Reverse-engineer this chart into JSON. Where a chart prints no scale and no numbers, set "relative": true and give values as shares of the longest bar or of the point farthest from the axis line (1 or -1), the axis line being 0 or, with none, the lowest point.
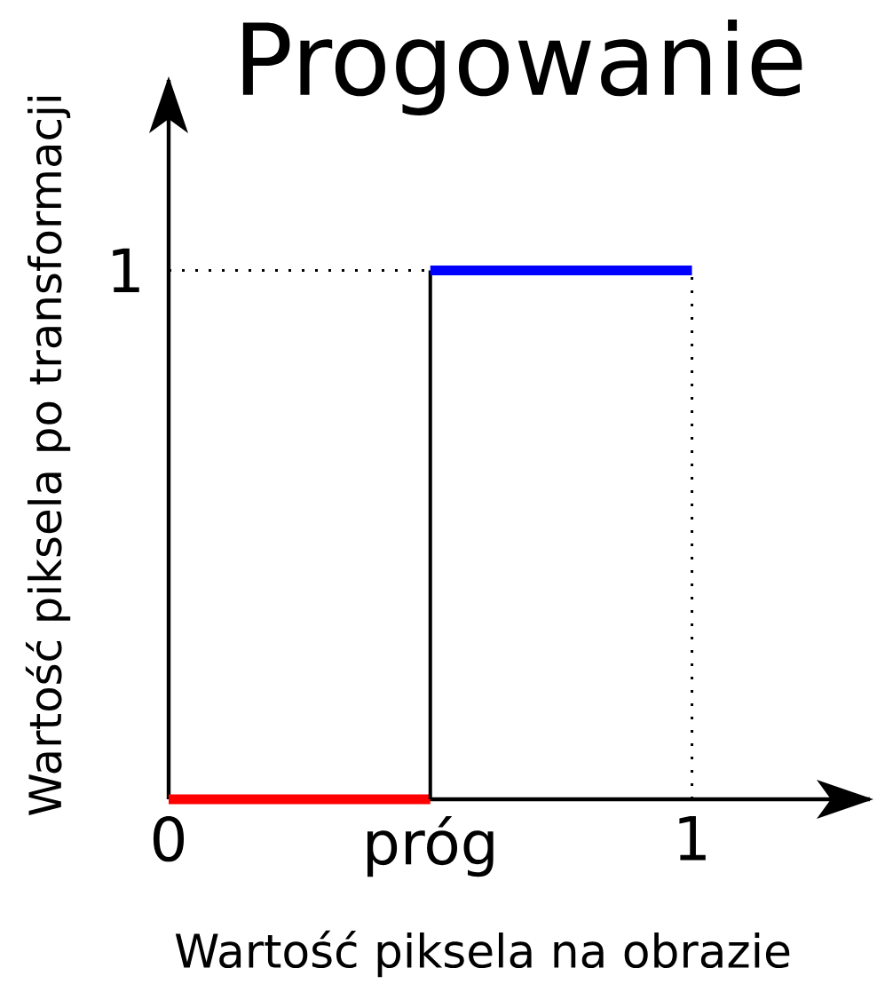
{
  "chart_data": {
    "type": "line",
    "title": "Progowanie",
    "xlabel": "Wartość piksela na obrazie",
    "ylabel": "Wartość piksela po transformacji",
    "xlim": [
      0,
      1.34
    ],
    "relative": true,
    "xticks": [
      0,
      {
        "value": 0.5,
        "label": "próg"
      },
      1
    ],
    "annotations": [
      {
        "text": "1",
        "x": 0,
        "y": 1
      }
    ],
    "series": [
      {
        "color": "#000000",
        "line_style": "dotted",
        "x": [
          0,
          0.5
        ],
        "values": [
          1,
          1
        ]
      },
      {
        "color": "#000000",
        "line_style": "dotted",
        "x": [
          1,
          1
        ],
        "values": [
          0,
          1
        ]
      },
      {
        "color": "#ff0000",
        "line_style": "solid",
        "x": [
          0,
          0.5
        ],
        "values": [
          0,
          0
        ]
      },
      {
        "color": "#000000",
        "line_style": "solid",
        "x": [
          0.5,
          0.5
        ],
        "values": [
          0,
          1
        ]
      },
      {
        "color": "#0000ff",
        "line_style": "solid",
        "x": [
          0.5,
          1
        ],
        "values": [
          1,
          1
        ]
      }
    ]
  }
}
